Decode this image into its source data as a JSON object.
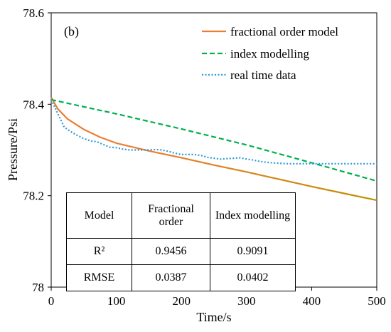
{
  "chart_data": {
    "type": "line",
    "panel_label": "(b)",
    "xlabel": "Time/s",
    "ylabel": "Pressure/Psi",
    "xlim": [
      0,
      500
    ],
    "ylim": [
      78.0,
      78.6
    ],
    "xticks": [
      "0",
      "100",
      "200",
      "300",
      "400",
      "500"
    ],
    "yticks": [
      "78",
      "78.2",
      "78.4",
      "78.6"
    ],
    "legend_position": "top-right",
    "series": [
      {
        "name": "fractional order model",
        "color": "#ED7D31",
        "end_color": "#BF9000",
        "style": "solid",
        "x": [
          0,
          10,
          25,
          50,
          75,
          100,
          150,
          200,
          250,
          300,
          350,
          400,
          450,
          500
        ],
        "y": [
          78.415,
          78.39,
          78.368,
          78.345,
          78.328,
          78.315,
          78.298,
          78.283,
          78.267,
          78.252,
          78.236,
          78.22,
          78.205,
          78.19
        ]
      },
      {
        "name": "index modelling",
        "color": "#00B050",
        "style": "dashed",
        "x": [
          0,
          100,
          200,
          300,
          400,
          500
        ],
        "y": [
          78.41,
          78.379,
          78.346,
          78.311,
          78.272,
          78.232
        ]
      },
      {
        "name": "real time data",
        "color": "#2E9BD6",
        "style": "dotted",
        "x": [
          0,
          10,
          20,
          30,
          40,
          50,
          60,
          70,
          80,
          90,
          100,
          110,
          120,
          130,
          140,
          150,
          160,
          170,
          180,
          190,
          200,
          210,
          220,
          230,
          240,
          250,
          260,
          270,
          280,
          290,
          300,
          310,
          320,
          330,
          340,
          350,
          360,
          370,
          380,
          390,
          400,
          410,
          420,
          430,
          440,
          450,
          460,
          470,
          480,
          490,
          500
        ],
        "y": [
          78.41,
          78.38,
          78.35,
          78.34,
          78.332,
          78.325,
          78.32,
          78.318,
          78.312,
          78.306,
          78.305,
          78.302,
          78.3,
          78.3,
          78.3,
          78.3,
          78.301,
          78.3,
          78.297,
          78.293,
          78.29,
          78.29,
          78.29,
          78.288,
          78.284,
          78.282,
          78.28,
          78.281,
          78.282,
          78.283,
          78.28,
          78.278,
          78.275,
          78.273,
          78.272,
          78.271,
          78.27,
          78.27,
          78.27,
          78.27,
          78.27,
          78.27,
          78.27,
          78.27,
          78.27,
          78.27,
          78.27,
          78.27,
          78.27,
          78.27,
          78.27
        ]
      }
    ]
  },
  "stats_table": {
    "headers": [
      "Model",
      "Fractional order",
      "Index modelling"
    ],
    "rows": [
      [
        "R²",
        "0.9456",
        "0.9091"
      ],
      [
        "RMSE",
        "0.0387",
        "0.0402"
      ]
    ]
  }
}
